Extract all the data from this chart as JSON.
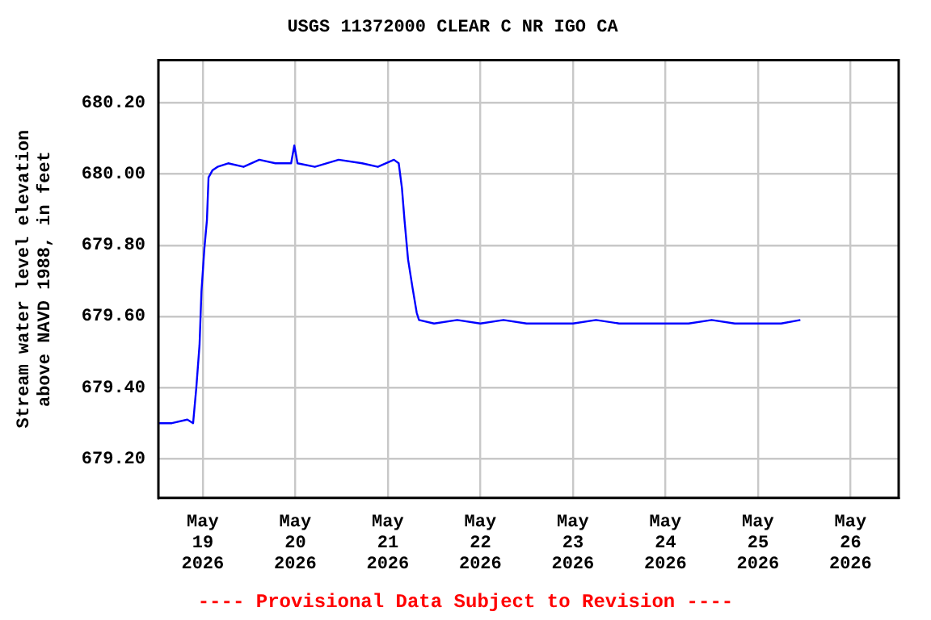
{
  "chart_data": {
    "type": "line",
    "title": "USGS 11372000 CLEAR C NR IGO CA",
    "ylabel": "Stream water level elevation above NAVD 1988, in feet",
    "annotations": [
      "---- Provisional Data Subject to Revision ----"
    ],
    "x": [
      "2026-05-18T12:30",
      "2026-05-18T16:00",
      "2026-05-18T20:00",
      "2026-05-18T21:30",
      "2026-05-18T22:20",
      "2026-05-18T23:10",
      "2026-05-18T23:40",
      "2026-05-19T00:25",
      "2026-05-19T01:05",
      "2026-05-19T01:30",
      "2026-05-19T02:30",
      "2026-05-19T03:50",
      "2026-05-19T06:35",
      "2026-05-19T10:35",
      "2026-05-19T14:40",
      "2026-05-19T18:50",
      "2026-05-19T22:55",
      "2026-05-19T23:45",
      "2026-05-20T00:35",
      "2026-05-20T05:05",
      "2026-05-20T11:15",
      "2026-05-20T17:20",
      "2026-05-20T21:25",
      "2026-05-21T01:35",
      "2026-05-21T02:50",
      "2026-05-21T03:40",
      "2026-05-21T04:20",
      "2026-05-21T05:15",
      "2026-05-21T06:25",
      "2026-05-21T07:30",
      "2026-05-21T08:05",
      "2026-05-21T12:00",
      "2026-05-21T18:00",
      "2026-05-22T00:00",
      "2026-05-22T06:00",
      "2026-05-22T12:00",
      "2026-05-22T18:00",
      "2026-05-23T00:00",
      "2026-05-23T06:00",
      "2026-05-23T12:00",
      "2026-05-23T18:00",
      "2026-05-24T00:00",
      "2026-05-24T06:00",
      "2026-05-24T12:00",
      "2026-05-24T18:00",
      "2026-05-25T00:00",
      "2026-05-25T06:00",
      "2026-05-25T11:00"
    ],
    "series": [
      {
        "color": "#0000ff",
        "values": [
          679.3,
          679.3,
          679.31,
          679.3,
          679.4,
          679.52,
          679.67,
          679.79,
          679.87,
          679.99,
          680.01,
          680.02,
          680.03,
          680.02,
          680.04,
          680.03,
          680.03,
          680.08,
          680.03,
          680.02,
          680.04,
          680.03,
          680.02,
          680.04,
          680.03,
          679.96,
          679.87,
          679.76,
          679.68,
          679.61,
          679.59,
          679.58,
          679.59,
          679.58,
          679.59,
          679.58,
          679.58,
          679.58,
          679.59,
          679.58,
          679.58,
          679.58,
          679.58,
          679.59,
          679.58,
          679.58,
          679.58,
          679.59
        ]
      }
    ],
    "xlim": [
      "2026-05-18T12:30",
      "2026-05-26T12:30"
    ],
    "xticks": [
      {
        "value": "2026-05-19",
        "label": "May 19 2026"
      },
      {
        "value": "2026-05-20",
        "label": "May 20 2026"
      },
      {
        "value": "2026-05-21",
        "label": "May 21 2026"
      },
      {
        "value": "2026-05-22",
        "label": "May 22 2026"
      },
      {
        "value": "2026-05-23",
        "label": "May 23 2026"
      },
      {
        "value": "2026-05-24",
        "label": "May 24 2026"
      },
      {
        "value": "2026-05-25",
        "label": "May 25 2026"
      },
      {
        "value": "2026-05-26",
        "label": "May 26 2026"
      }
    ],
    "ylim": [
      679.09,
      680.32
    ],
    "yticks": [
      {
        "value": 679.2,
        "label": "679.20"
      },
      {
        "value": 679.4,
        "label": "679.40"
      },
      {
        "value": 679.6,
        "label": "679.60"
      },
      {
        "value": 679.8,
        "label": "679.80"
      },
      {
        "value": 680.0,
        "label": "680.00"
      },
      {
        "value": 680.2,
        "label": "680.20"
      }
    ],
    "grid": true,
    "legend": false,
    "marker": "none",
    "line_style": "solid"
  }
}
